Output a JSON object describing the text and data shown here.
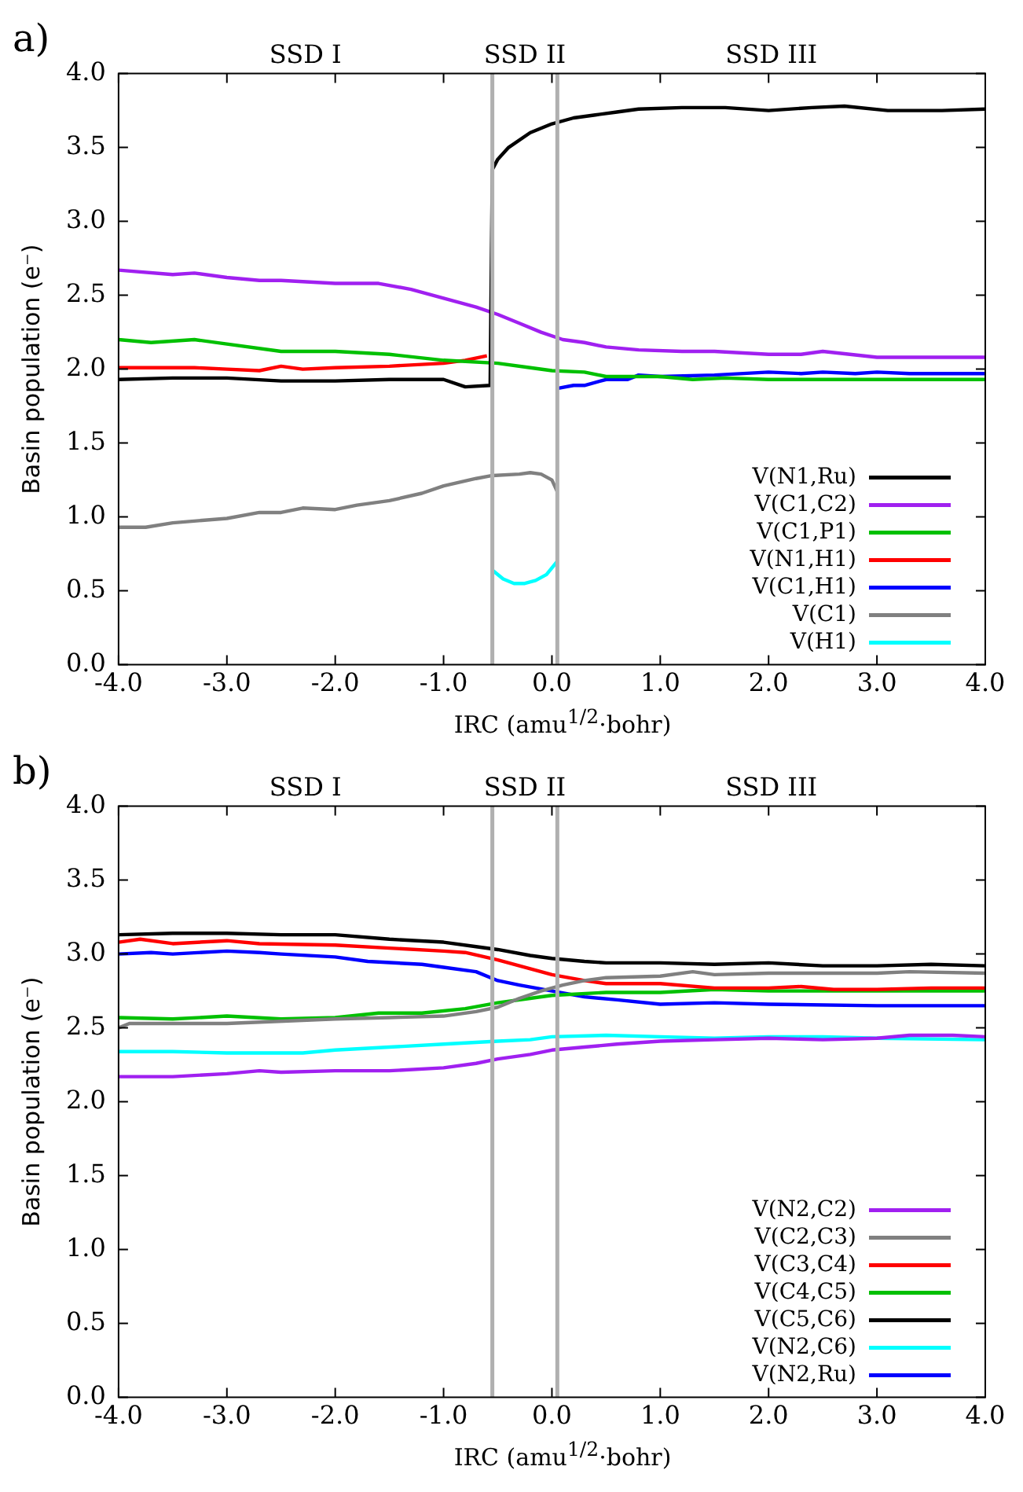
{
  "chart_data": [
    {
      "type": "line",
      "title": "a)",
      "xlabel": "IRC (amu$^{1/2}$·bohr)",
      "ylabel": "Basin population (e⁻)",
      "xlim": [
        -4,
        4
      ],
      "ylim": [
        0,
        4
      ],
      "xticks": [
        {
          "value": -4,
          "label": "-4.0"
        },
        {
          "value": -3,
          "label": "-3.0"
        },
        {
          "value": -2,
          "label": "-2.0"
        },
        {
          "value": -1,
          "label": "-1.0"
        },
        {
          "value": 0,
          "label": "0.0"
        },
        {
          "value": 1,
          "label": "1.0"
        },
        {
          "value": 2,
          "label": "2.0"
        },
        {
          "value": 3,
          "label": "3.0"
        },
        {
          "value": 4,
          "label": "4.0"
        }
      ],
      "yticks": [
        {
          "value": 0,
          "label": "0.0"
        },
        {
          "value": 0.5,
          "label": "0.5"
        },
        {
          "value": 1,
          "label": "1.0"
        },
        {
          "value": 1.5,
          "label": "1.5"
        },
        {
          "value": 2,
          "label": "2.0"
        },
        {
          "value": 2.5,
          "label": "2.5"
        },
        {
          "value": 3,
          "label": "3.0"
        },
        {
          "value": 3.5,
          "label": "3.5"
        },
        {
          "value": 4,
          "label": "4.0"
        }
      ],
      "ref_lines": [
        {
          "axis": "x",
          "value": -0.55,
          "color": "#b0b0b0"
        },
        {
          "axis": "x",
          "value": 0.05,
          "color": "#b0b0b0"
        }
      ],
      "annotations": [
        "SSD I",
        "SSD II",
        "SSD III"
      ],
      "legend": "bottom right",
      "grid": false,
      "marker": "none",
      "line_style": "solid",
      "series": [
        {
          "name": "V(N1,Ru)",
          "color": "#000000",
          "x": [
            -4,
            -3.5,
            -3,
            -2.5,
            -2,
            -1.5,
            -1,
            -0.8,
            -0.57,
            -0.55,
            -0.5,
            -0.4,
            -0.2,
            0,
            0.2,
            0.4,
            0.6,
            0.8,
            1.2,
            1.6,
            2,
            2.4,
            2.7,
            3.1,
            3.6,
            4
          ],
          "values": [
            1.93,
            1.94,
            1.94,
            1.92,
            1.92,
            1.93,
            1.93,
            1.88,
            1.89,
            3.35,
            3.42,
            3.5,
            3.6,
            3.66,
            3.7,
            3.72,
            3.74,
            3.76,
            3.77,
            3.77,
            3.75,
            3.77,
            3.78,
            3.75,
            3.75,
            3.76
          ]
        },
        {
          "name": "V(C1,C2)",
          "color": "#a020f0",
          "x": [
            -4,
            -3.5,
            -3.3,
            -3,
            -2.7,
            -2.5,
            -2,
            -1.6,
            -1.3,
            -1,
            -0.7,
            -0.5,
            -0.3,
            -0.1,
            0.1,
            0.3,
            0.5,
            0.8,
            1.2,
            1.5,
            2,
            2.3,
            2.5,
            3,
            4
          ],
          "values": [
            2.67,
            2.64,
            2.65,
            2.62,
            2.6,
            2.6,
            2.58,
            2.58,
            2.54,
            2.48,
            2.42,
            2.37,
            2.31,
            2.25,
            2.2,
            2.18,
            2.15,
            2.13,
            2.12,
            2.12,
            2.1,
            2.1,
            2.12,
            2.08,
            2.08
          ]
        },
        {
          "name": "V(C1,P1)",
          "color": "#00c000",
          "x": [
            -4,
            -3.7,
            -3.3,
            -3,
            -2.5,
            -2,
            -1.5,
            -1,
            -0.5,
            -0.2,
            0,
            0.3,
            0.5,
            1,
            1.3,
            1.6,
            2,
            3,
            4
          ],
          "values": [
            2.2,
            2.18,
            2.2,
            2.17,
            2.12,
            2.12,
            2.1,
            2.06,
            2.04,
            2.01,
            1.99,
            1.98,
            1.95,
            1.95,
            1.93,
            1.94,
            1.93,
            1.93,
            1.93
          ]
        },
        {
          "name": "V(N1,H1)",
          "color": "#ff0000",
          "x": [
            -4,
            -3.3,
            -3,
            -2.7,
            -2.5,
            -2.3,
            -2,
            -1.5,
            -1,
            -0.8,
            -0.6
          ],
          "values": [
            2.01,
            2.01,
            2,
            1.99,
            2.02,
            2,
            2.01,
            2.02,
            2.04,
            2.06,
            2.09
          ]
        },
        {
          "name": "V(C1,H1)",
          "color": "#0000ff",
          "x": [
            0.05,
            0.2,
            0.3,
            0.5,
            0.7,
            0.8,
            1,
            1.5,
            2,
            2.3,
            2.5,
            2.8,
            3,
            3.3,
            4
          ],
          "values": [
            1.87,
            1.89,
            1.89,
            1.93,
            1.93,
            1.96,
            1.95,
            1.96,
            1.98,
            1.97,
            1.98,
            1.97,
            1.98,
            1.97,
            1.97
          ]
        },
        {
          "name": "V(C1)",
          "color": "#808080",
          "x": [
            -4,
            -3.75,
            -3.5,
            -3,
            -2.7,
            -2.5,
            -2.3,
            -2,
            -1.8,
            -1.5,
            -1.2,
            -1,
            -0.7,
            -0.55,
            -0.3,
            -0.2,
            -0.1,
            0,
            0.05
          ],
          "values": [
            0.93,
            0.93,
            0.96,
            0.99,
            1.03,
            1.03,
            1.06,
            1.05,
            1.08,
            1.11,
            1.16,
            1.21,
            1.26,
            1.28,
            1.29,
            1.3,
            1.29,
            1.25,
            1.17
          ]
        },
        {
          "name": "V(H1)",
          "color": "#00ffff",
          "x": [
            -0.55,
            -0.45,
            -0.35,
            -0.25,
            -0.15,
            -0.05,
            0.05
          ],
          "values": [
            0.64,
            0.58,
            0.55,
            0.55,
            0.57,
            0.61,
            0.7
          ]
        }
      ]
    },
    {
      "type": "line",
      "title": "b)",
      "xlabel": "IRC (amu$^{1/2}$·bohr)",
      "ylabel": "Basin population (e⁻)",
      "xlim": [
        -4,
        4
      ],
      "ylim": [
        0,
        4
      ],
      "xticks": [
        {
          "value": -4,
          "label": "-4.0"
        },
        {
          "value": -3,
          "label": "-3.0"
        },
        {
          "value": -2,
          "label": "-2.0"
        },
        {
          "value": -1,
          "label": "-1.0"
        },
        {
          "value": 0,
          "label": "0.0"
        },
        {
          "value": 1,
          "label": "1.0"
        },
        {
          "value": 2,
          "label": "2.0"
        },
        {
          "value": 3,
          "label": "3.0"
        },
        {
          "value": 4,
          "label": "4.0"
        }
      ],
      "yticks": [
        {
          "value": 0,
          "label": "0.0"
        },
        {
          "value": 0.5,
          "label": "0.5"
        },
        {
          "value": 1,
          "label": "1.0"
        },
        {
          "value": 1.5,
          "label": "1.5"
        },
        {
          "value": 2,
          "label": "2.0"
        },
        {
          "value": 2.5,
          "label": "2.5"
        },
        {
          "value": 3,
          "label": "3.0"
        },
        {
          "value": 3.5,
          "label": "3.5"
        },
        {
          "value": 4,
          "label": "4.0"
        }
      ],
      "ref_lines": [
        {
          "axis": "x",
          "value": -0.55,
          "color": "#b0b0b0"
        },
        {
          "axis": "x",
          "value": 0.05,
          "color": "#b0b0b0"
        }
      ],
      "annotations": [
        "SSD I",
        "SSD II",
        "SSD III"
      ],
      "legend": "bottom right",
      "grid": false,
      "marker": "none",
      "line_style": "solid",
      "series": [
        {
          "name": "V(N2,C2)",
          "color": "#a020f0",
          "x": [
            -4,
            -3.5,
            -3,
            -2.7,
            -2.5,
            -2,
            -1.5,
            -1,
            -0.7,
            -0.5,
            -0.2,
            0,
            0.3,
            0.6,
            1,
            1.5,
            2,
            2.5,
            3,
            3.3,
            3.7,
            4
          ],
          "values": [
            2.17,
            2.17,
            2.19,
            2.21,
            2.2,
            2.21,
            2.21,
            2.23,
            2.26,
            2.29,
            2.32,
            2.35,
            2.37,
            2.39,
            2.41,
            2.42,
            2.43,
            2.42,
            2.43,
            2.45,
            2.45,
            2.44
          ]
        },
        {
          "name": "V(C2,C3)",
          "color": "#808080",
          "x": [
            -4,
            -3.9,
            -3,
            -2,
            -1.5,
            -1,
            -0.7,
            -0.5,
            -0.3,
            -0.1,
            0.1,
            0.3,
            0.5,
            1,
            1.3,
            1.5,
            2,
            3,
            3.3,
            4
          ],
          "values": [
            2.5,
            2.53,
            2.53,
            2.56,
            2.57,
            2.58,
            2.61,
            2.64,
            2.7,
            2.75,
            2.79,
            2.82,
            2.84,
            2.85,
            2.88,
            2.86,
            2.87,
            2.87,
            2.88,
            2.87
          ]
        },
        {
          "name": "V(C3,C4)",
          "color": "#ff0000",
          "x": [
            -4,
            -3.8,
            -3.5,
            -3,
            -2.7,
            -2,
            -1.5,
            -1,
            -0.8,
            -0.5,
            -0.2,
            0,
            0.3,
            0.5,
            1,
            1.5,
            2,
            2.3,
            2.6,
            3,
            3.5,
            4
          ],
          "values": [
            3.08,
            3.1,
            3.07,
            3.09,
            3.07,
            3.06,
            3.04,
            3.02,
            3.01,
            2.96,
            2.9,
            2.86,
            2.82,
            2.8,
            2.8,
            2.77,
            2.77,
            2.78,
            2.76,
            2.76,
            2.77,
            2.77
          ]
        },
        {
          "name": "V(C4,C5)",
          "color": "#00c000",
          "x": [
            -4,
            -3.5,
            -3,
            -2.5,
            -2,
            -1.6,
            -1.2,
            -0.8,
            -0.5,
            -0.2,
            0,
            0.5,
            1,
            1.5,
            2,
            3,
            4
          ],
          "values": [
            2.57,
            2.56,
            2.58,
            2.56,
            2.57,
            2.6,
            2.6,
            2.63,
            2.67,
            2.7,
            2.72,
            2.74,
            2.74,
            2.76,
            2.75,
            2.75,
            2.75
          ]
        },
        {
          "name": "V(C5,C6)",
          "color": "#000000",
          "x": [
            -4,
            -3.5,
            -3,
            -2.5,
            -2,
            -1.5,
            -1,
            -0.7,
            -0.5,
            -0.2,
            0,
            0.3,
            0.5,
            1,
            1.5,
            2,
            2.5,
            3,
            3.5,
            4
          ],
          "values": [
            3.13,
            3.14,
            3.14,
            3.13,
            3.13,
            3.1,
            3.08,
            3.05,
            3.03,
            2.99,
            2.97,
            2.95,
            2.94,
            2.94,
            2.93,
            2.94,
            2.92,
            2.92,
            2.93,
            2.92
          ]
        },
        {
          "name": "V(N2,C6)",
          "color": "#00ffff",
          "x": [
            -4,
            -3.5,
            -3,
            -2.3,
            -2,
            -1.5,
            -1,
            -0.5,
            -0.2,
            0,
            0.5,
            1,
            1.5,
            2,
            2.5,
            3,
            4
          ],
          "values": [
            2.34,
            2.34,
            2.33,
            2.33,
            2.35,
            2.37,
            2.39,
            2.41,
            2.42,
            2.44,
            2.45,
            2.44,
            2.43,
            2.44,
            2.44,
            2.43,
            2.42
          ]
        },
        {
          "name": "V(N2,Ru)",
          "color": "#0000ff",
          "x": [
            -4,
            -3.7,
            -3.5,
            -3,
            -2.7,
            -2.5,
            -2,
            -1.7,
            -1.2,
            -1,
            -0.7,
            -0.5,
            -0.3,
            0,
            0.3,
            0.6,
            1,
            1.5,
            2,
            3,
            4
          ],
          "values": [
            3,
            3.01,
            3,
            3.02,
            3.01,
            3,
            2.98,
            2.95,
            2.93,
            2.91,
            2.88,
            2.82,
            2.79,
            2.75,
            2.71,
            2.69,
            2.66,
            2.67,
            2.66,
            2.65,
            2.65
          ]
        }
      ]
    }
  ]
}
